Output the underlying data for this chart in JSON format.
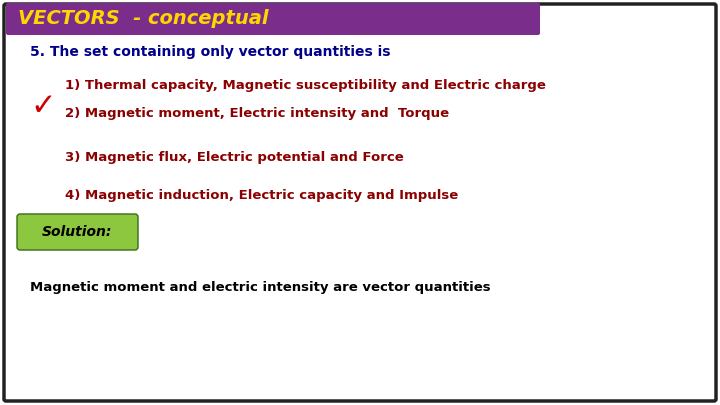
{
  "title": "VECTORS  - conceptual",
  "title_bg": "#7B2D8B",
  "title_color": "#FFD700",
  "question": "5. The set containing only vector quantities is",
  "question_color": "#00008B",
  "options": [
    "1) Thermal capacity, Magnetic susceptibility and Electric charge",
    "2) Magnetic moment, Electric intensity and  Torque",
    "3) Magnetic flux, Electric potential and Force",
    "4) Magnetic induction, Electric capacity and Impulse"
  ],
  "options_color": "#8B0000",
  "correct_index": 1,
  "checkmark_color": "#CC0000",
  "solution_label": "Solution:",
  "solution_bg_top": "#8DC63F",
  "solution_bg_bot": "#5A8A2A",
  "solution_text_color": "#000000",
  "solution_italic_color": "#FFD700",
  "solution_body": "Magnetic moment and electric intensity are vector quantities",
  "solution_body_color": "#000000",
  "bg_color": "#FFFFFF",
  "border_color": "#222222",
  "fig_width": 7.2,
  "fig_height": 4.05,
  "dpi": 100
}
